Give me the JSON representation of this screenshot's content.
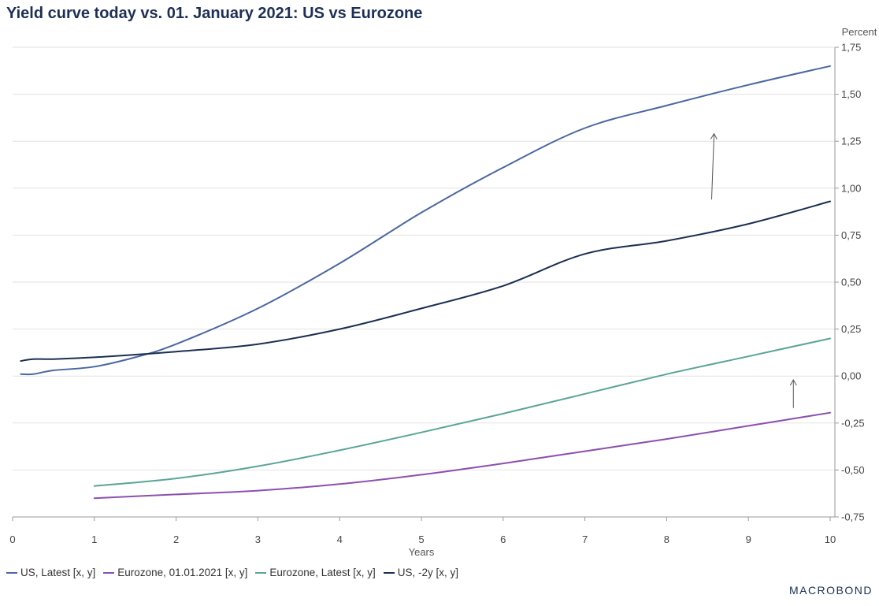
{
  "title": "Yield curve today vs. 01. January 2021: US vs Eurozone",
  "brand": "MACROBOND",
  "colors": {
    "us_latest": "#4a67a1",
    "eurozone_2021": "#8c4fae",
    "eurozone_latest": "#5aa596",
    "us_2y": "#1b2f52",
    "grid": "#e2e2e2",
    "arrow": "#555555"
  },
  "chart_data": {
    "type": "line",
    "title": "Yield curve today vs. 01. January 2021: US vs Eurozone",
    "xlabel": "Years",
    "ylabel": "Percent",
    "xlim": [
      0,
      10
    ],
    "ylim": [
      -0.75,
      1.75
    ],
    "x_ticks": [
      "0",
      "1",
      "2",
      "3",
      "4",
      "5",
      "6",
      "7",
      "8",
      "9",
      "10"
    ],
    "y_ticks": [
      "-0,75",
      "-0,50",
      "-0,25",
      "0,00",
      "0,25",
      "0,50",
      "0,75",
      "1,00",
      "1,25",
      "1,50",
      "1,75"
    ],
    "grid": true,
    "legend_position": "bottom-left",
    "series": [
      {
        "name": "US, Latest [x, y]",
        "color_key": "us_latest",
        "points": [
          [
            0.1,
            0.01
          ],
          [
            0.25,
            0.01
          ],
          [
            0.5,
            0.03
          ],
          [
            1,
            0.05
          ],
          [
            1.5,
            0.1
          ],
          [
            2,
            0.17
          ],
          [
            3,
            0.36
          ],
          [
            4,
            0.6
          ],
          [
            5,
            0.87
          ],
          [
            6,
            1.11
          ],
          [
            7,
            1.32
          ],
          [
            8,
            1.44
          ],
          [
            9,
            1.55
          ],
          [
            10,
            1.65
          ]
        ]
      },
      {
        "name": "Eurozone, 01.01.2021 [x, y]",
        "color_key": "eurozone_2021",
        "points": [
          [
            1,
            -0.65
          ],
          [
            2,
            -0.63
          ],
          [
            3,
            -0.61
          ],
          [
            4,
            -0.575
          ],
          [
            5,
            -0.525
          ],
          [
            6,
            -0.465
          ],
          [
            7,
            -0.4
          ],
          [
            8,
            -0.335
          ],
          [
            9,
            -0.265
          ],
          [
            10,
            -0.195
          ]
        ]
      },
      {
        "name": "Eurozone, Latest [x, y]",
        "color_key": "eurozone_latest",
        "points": [
          [
            1,
            -0.585
          ],
          [
            2,
            -0.545
          ],
          [
            3,
            -0.48
          ],
          [
            4,
            -0.395
          ],
          [
            5,
            -0.3
          ],
          [
            6,
            -0.2
          ],
          [
            7,
            -0.095
          ],
          [
            8,
            0.01
          ],
          [
            9,
            0.105
          ],
          [
            10,
            0.2
          ]
        ]
      },
      {
        "name": "US, -2y [x, y]",
        "color_key": "us_2y",
        "points": [
          [
            0.1,
            0.08
          ],
          [
            0.25,
            0.09
          ],
          [
            0.5,
            0.09
          ],
          [
            1,
            0.1
          ],
          [
            2,
            0.13
          ],
          [
            3,
            0.17
          ],
          [
            4,
            0.25
          ],
          [
            5,
            0.36
          ],
          [
            6,
            0.48
          ],
          [
            7,
            0.65
          ],
          [
            8,
            0.72
          ],
          [
            9,
            0.81
          ],
          [
            10,
            0.93
          ]
        ]
      }
    ],
    "annotations": [
      {
        "type": "arrow",
        "from": [
          8.55,
          0.94
        ],
        "to": [
          8.58,
          1.29
        ]
      },
      {
        "type": "arrow",
        "from": [
          9.55,
          -0.17
        ],
        "to": [
          9.55,
          -0.02
        ]
      }
    ]
  }
}
